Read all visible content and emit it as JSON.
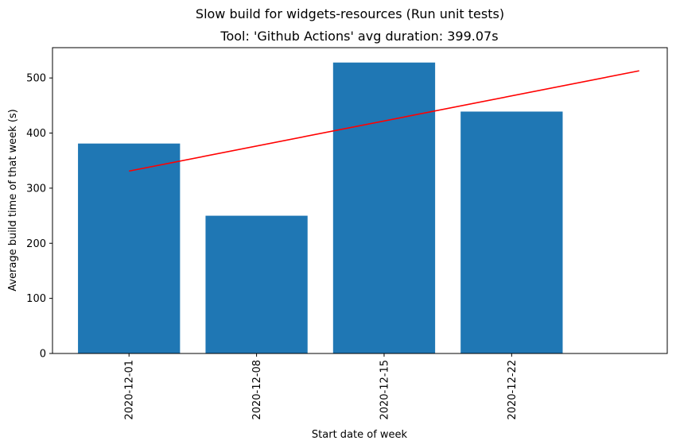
{
  "chart_data": {
    "type": "bar",
    "suptitle": "Slow build for widgets-resources (Run unit tests)",
    "title": "Tool: 'Github Actions' avg duration: 399.07s",
    "xlabel": "Start date of week",
    "ylabel": "Average build time of that week (s)",
    "categories": [
      "2020-12-01",
      "2020-12-08",
      "2020-12-15",
      "2020-12-22"
    ],
    "values": [
      381,
      250,
      528,
      439
    ],
    "bar_color": "#1f77b4",
    "trend": {
      "color": "#ff0000",
      "x_start": 0,
      "x_end": 4,
      "y_start": 331,
      "y_end": 513
    },
    "ylim": [
      0,
      555
    ],
    "yticks": [
      0,
      100,
      200,
      300,
      400,
      500
    ],
    "grid": false,
    "legend": "none"
  }
}
